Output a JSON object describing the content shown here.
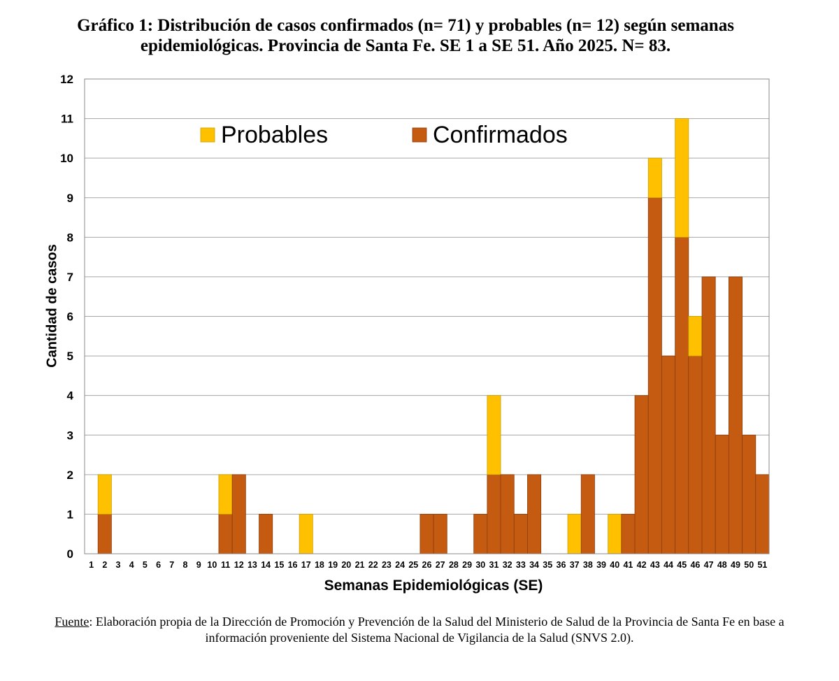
{
  "chart_data": {
    "type": "bar",
    "stacked": true,
    "title": "Gráfico 1: Distribución de casos confirmados (n= 71) y probables (n= 12) según semanas epidemiológicas. Provincia de Santa Fe. SE 1 a SE 51. Año 2025. N= 83.",
    "title_line1": "Gráfico 1: Distribución de casos confirmados (n= 71) y probables (n= 12) según semanas",
    "title_line2": "epidemiológicas. Provincia de Santa Fe. SE 1 a SE 51. Año 2025. N= 83.",
    "xlabel": "Semanas Epidemiológicas (SE)",
    "ylabel": "Cantidad de casos",
    "ylim": [
      0,
      12
    ],
    "yticks": [
      0,
      1,
      2,
      3,
      4,
      5,
      6,
      7,
      8,
      9,
      10,
      11,
      12
    ],
    "grid": true,
    "legend_position": "top-left-inside",
    "categories": [
      "1",
      "2",
      "3",
      "4",
      "5",
      "6",
      "7",
      "8",
      "9",
      "10",
      "11",
      "12",
      "13",
      "14",
      "15",
      "16",
      "17",
      "18",
      "19",
      "20",
      "21",
      "22",
      "23",
      "24",
      "25",
      "26",
      "27",
      "28",
      "29",
      "30",
      "31",
      "32",
      "33",
      "34",
      "35",
      "36",
      "37",
      "38",
      "39",
      "40",
      "41",
      "42",
      "43",
      "44",
      "45",
      "46",
      "47",
      "48",
      "49",
      "50",
      "51"
    ],
    "series": [
      {
        "name": "Confirmados",
        "color": "#C55A11",
        "values": [
          0,
          1,
          0,
          0,
          0,
          0,
          0,
          0,
          0,
          0,
          1,
          2,
          0,
          1,
          0,
          0,
          0,
          0,
          0,
          0,
          0,
          0,
          0,
          0,
          0,
          1,
          1,
          0,
          0,
          1,
          2,
          2,
          1,
          2,
          0,
          0,
          0,
          2,
          0,
          0,
          1,
          4,
          9,
          5,
          8,
          5,
          7,
          3,
          7,
          3,
          2
        ]
      },
      {
        "name": "Probables",
        "color": "#FFC000",
        "values": [
          0,
          1,
          0,
          0,
          0,
          0,
          0,
          0,
          0,
          0,
          1,
          0,
          0,
          0,
          0,
          0,
          1,
          0,
          0,
          0,
          0,
          0,
          0,
          0,
          0,
          0,
          0,
          0,
          0,
          0,
          2,
          0,
          0,
          0,
          0,
          0,
          1,
          0,
          0,
          1,
          0,
          0,
          1,
          0,
          3,
          1,
          0,
          0,
          0,
          0,
          0
        ]
      }
    ],
    "legend": [
      {
        "name": "Probables",
        "color": "#FFC000"
      },
      {
        "name": "Confirmados",
        "color": "#C55A11"
      }
    ]
  },
  "source": {
    "label": "Fuente",
    "text": ": Elaboración propia de la Dirección de Promoción y Prevención de la Salud del Ministerio de Salud de la Provincia de Santa Fe en base a información proveniente del Sistema Nacional de Vigilancia de la Salud (SNVS 2.0)."
  }
}
